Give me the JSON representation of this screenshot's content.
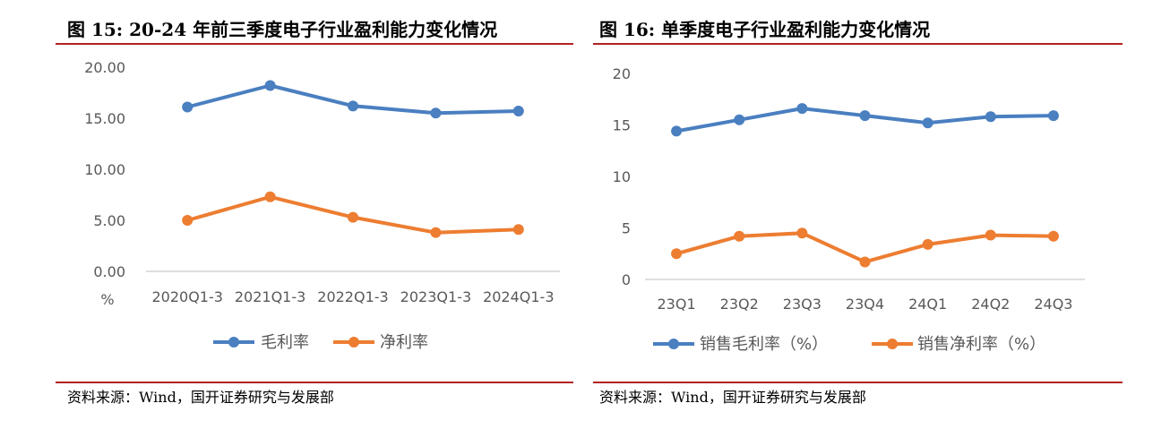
{
  "figures": [
    {
      "title": "图 15:  20-24 年前三季度电子行业盈利能力变化情况",
      "source": "资料来源：Wind，国开证券研究与发展部"
    },
    {
      "title": "图 16:  单季度电子行业盈利能力变化情况",
      "source": "资料来源：Wind，国开证券研究与发展部"
    }
  ],
  "colors": {
    "series1": "#4a7fc0",
    "series2": "#ed7d31",
    "rule": "#b22222",
    "axis": "#bfbfbf"
  },
  "chart_data": [
    {
      "type": "line",
      "categories": [
        "2020Q1-3",
        "2021Q1-3",
        "2022Q1-3",
        "2023Q1-3",
        "2024Q1-3"
      ],
      "series": [
        {
          "name": "毛利率",
          "values": [
            16.1,
            18.2,
            16.2,
            15.5,
            15.7
          ]
        },
        {
          "name": "净利率",
          "values": [
            5.0,
            7.3,
            5.3,
            3.8,
            4.1
          ]
        }
      ],
      "yticks": [
        "0.00",
        "5.00",
        "10.00",
        "15.00",
        "20.00"
      ],
      "ylim": [
        0,
        20
      ],
      "ylabel": "%",
      "grid": false,
      "legend": "bottom"
    },
    {
      "type": "line",
      "categories": [
        "23Q1",
        "23Q2",
        "23Q3",
        "23Q4",
        "24Q1",
        "24Q2",
        "24Q3"
      ],
      "series": [
        {
          "name": "销售毛利率（%）",
          "values": [
            14.4,
            15.5,
            16.6,
            15.9,
            15.2,
            15.8,
            15.9
          ]
        },
        {
          "name": "销售净利率（%）",
          "values": [
            2.5,
            4.2,
            4.5,
            1.7,
            3.4,
            4.3,
            4.2
          ]
        }
      ],
      "yticks": [
        "0",
        "5",
        "10",
        "15",
        "20"
      ],
      "ylim": [
        0,
        20
      ],
      "grid": false,
      "legend": "bottom"
    }
  ]
}
